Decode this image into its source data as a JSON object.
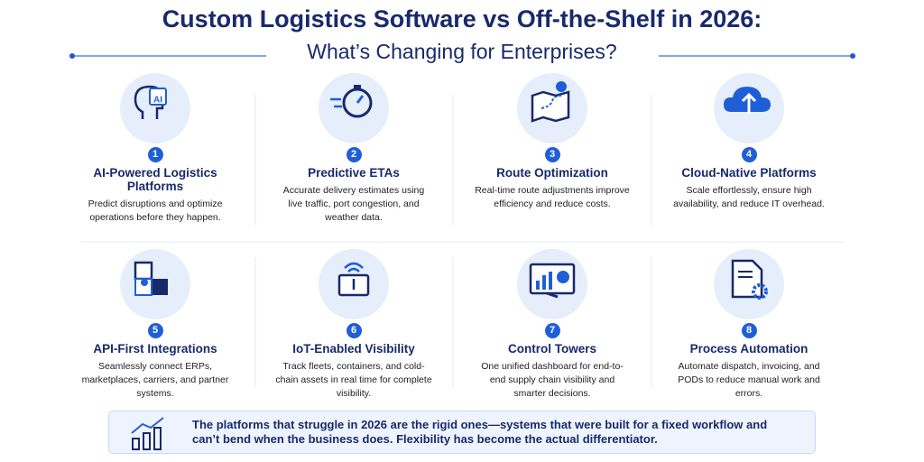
{
  "header": {
    "title": "Custom Logistics Software vs Off-the-Shelf in 2026:",
    "subtitle": "What’s Changing for Enterprises?"
  },
  "items": [
    {
      "number": 1,
      "icon_label": "AI",
      "title": "AI-Powered Logistics Platforms",
      "description": "Predict disruptions and optimize operations before they happen."
    },
    {
      "number": 2,
      "title": "Predictive ETAs",
      "description": "Accurate delivery estimates using live traffic, port congestion, and weather data."
    },
    {
      "number": 3,
      "title": "Route Optimization",
      "description": "Real-time route adjustments improve efficiency and reduce costs."
    },
    {
      "number": 4,
      "title": "Cloud-Native Platforms",
      "description": "Scale effortlessly, ensure high availability, and reduce IT overhead."
    },
    {
      "number": 5,
      "title": "API-First Integrations",
      "description": "Seamlessly connect ERPs, marketplaces, carriers, and partner systems."
    },
    {
      "number": 6,
      "title": "IoT-Enabled Visibility",
      "description": "Track fleets, containers, and cold-chain assets in real time for complete visibility."
    },
    {
      "number": 7,
      "title": "Control Towers",
      "description": "One unified dashboard for end-to-end supply chain visibility and smarter decisions."
    },
    {
      "number": 8,
      "title": "Process Automation",
      "description": "Automate dispatch, invoicing, and PODs to reduce manual work and errors."
    }
  ],
  "footer": {
    "text": "The platforms that struggle in 2026 are the rigid ones—systems that were built for a fixed workflow and can’t bend when the business does. Flexibility has become the actual differentiator."
  }
}
